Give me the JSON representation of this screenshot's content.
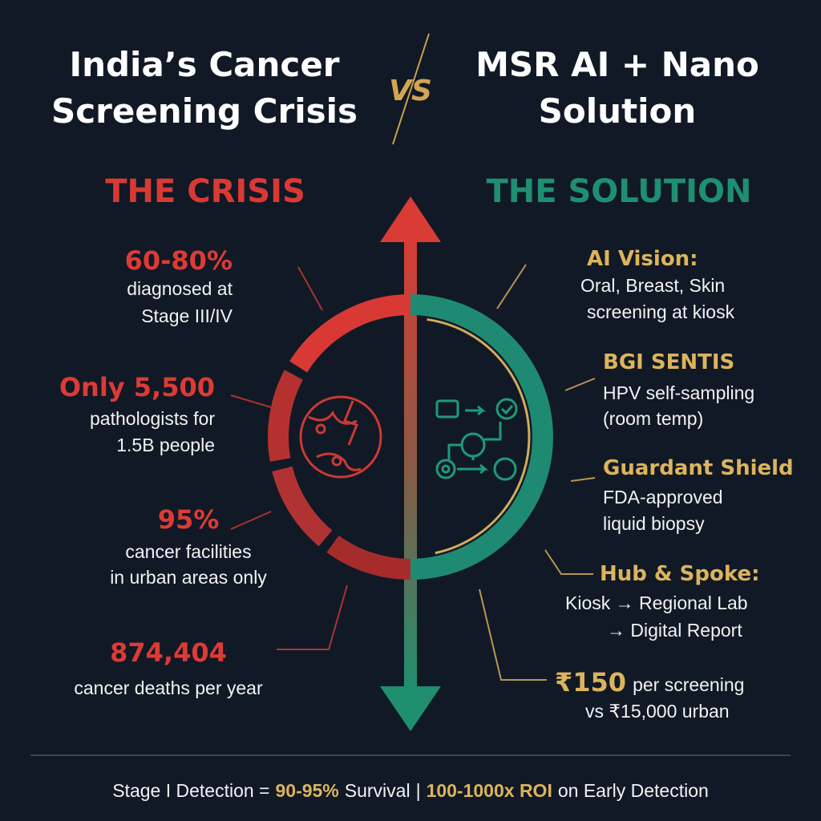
{
  "header": {
    "left_title": [
      "India’s Cancer",
      "Screening Crisis"
    ],
    "vs": "VS",
    "right_title": [
      "MSR AI + Nano",
      "Solution"
    ]
  },
  "crisis": {
    "heading": "THE CRISIS",
    "items": [
      {
        "highlight": "60-80%",
        "lines": [
          "diagnosed at",
          "Stage III/IV"
        ]
      },
      {
        "highlight": "Only 5,500",
        "lines": [
          "pathologists for",
          "1.5B people"
        ]
      },
      {
        "highlight": "95%",
        "lines": [
          "cancer facilities",
          "in urban areas only"
        ]
      },
      {
        "highlight": "874,404",
        "lines": [
          "cancer deaths per year"
        ]
      }
    ]
  },
  "solution": {
    "heading": "THE SOLUTION",
    "items": [
      {
        "title": "AI Vision:",
        "lines": [
          "Oral, Breast, Skin",
          "screening at kiosk"
        ]
      },
      {
        "title": "BGI SENTIS",
        "lines": [
          "HPV self-sampling",
          "(room temp)"
        ]
      },
      {
        "title": "Guardant Shield",
        "lines": [
          "FDA-approved",
          "liquid biopsy"
        ]
      },
      {
        "title": "Hub & Spoke:",
        "lines": [
          "Kiosk → Regional Lab",
          "→ Digital Report"
        ]
      },
      {
        "title": "₹150",
        "lines": [
          "per screening",
          "vs ₹15,000 urban"
        ]
      }
    ]
  },
  "footer": {
    "left_prefix": "Stage I Detection =",
    "left_highlight": "90-95%",
    "left_suffix": "Survival",
    "separator": "|",
    "right_highlight": "100-1000x ROI",
    "right_suffix": "on Early Detection"
  }
}
